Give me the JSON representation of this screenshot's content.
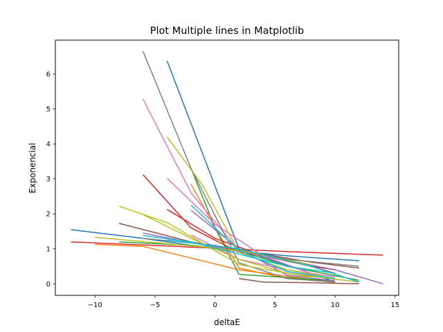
{
  "chart_data": {
    "type": "line",
    "title": "Plot Multiple lines in Matplotlib",
    "xlabel": "deltaE",
    "ylabel": "Exponencial",
    "xlim": [
      -13.3,
      15.3
    ],
    "ylim": [
      -0.33,
      6.97
    ],
    "xticks": [
      -10,
      -5,
      0,
      5,
      10,
      15
    ],
    "xtick_labels": [
      "−10",
      "−5",
      "0",
      "5",
      "10",
      "15"
    ],
    "yticks": [
      0,
      1,
      2,
      3,
      4,
      5,
      6
    ],
    "ytick_labels": [
      "0",
      "1",
      "2",
      "3",
      "4",
      "5",
      "6"
    ],
    "grid": false,
    "legend": "none",
    "series": [
      {
        "color": "#1f77b4",
        "x": [
          -4,
          2,
          8,
          10
        ],
        "y": [
          6.38,
          1.0,
          0.3,
          0.05
        ]
      },
      {
        "color": "#1f77b4",
        "x": [
          -12,
          -6,
          0,
          6,
          12
        ],
        "y": [
          1.55,
          1.3,
          1.0,
          0.8,
          0.66
        ]
      },
      {
        "color": "#ff7f0e",
        "x": [
          -10,
          -6,
          2,
          10
        ],
        "y": [
          1.13,
          1.07,
          0.4,
          0.03
        ]
      },
      {
        "color": "#ff7f0e",
        "x": [
          -2,
          0,
          2,
          6,
          10
        ],
        "y": [
          2.85,
          1.6,
          0.45,
          0.15,
          0.05
        ]
      },
      {
        "color": "#2ca02c",
        "x": [
          -2,
          0,
          2,
          6,
          10
        ],
        "y": [
          3.3,
          1.6,
          0.27,
          0.18,
          0.08
        ]
      },
      {
        "color": "#2ca02c",
        "x": [
          -8,
          -2,
          2,
          6,
          12
        ],
        "y": [
          1.2,
          1.1,
          0.95,
          0.5,
          0.1
        ]
      },
      {
        "color": "#d62728",
        "x": [
          -12,
          -2,
          6,
          14
        ],
        "y": [
          1.2,
          1.05,
          0.92,
          0.82
        ]
      },
      {
        "color": "#d62728",
        "x": [
          -6,
          -2,
          2,
          6,
          10
        ],
        "y": [
          3.12,
          1.6,
          0.9,
          0.7,
          0.3
        ]
      },
      {
        "color": "#d62728",
        "x": [
          -4,
          0,
          4,
          8,
          10
        ],
        "y": [
          2.13,
          1.3,
          0.8,
          0.5,
          0.4
        ]
      },
      {
        "color": "#9467bd",
        "x": [
          -6,
          0,
          4,
          10,
          14
        ],
        "y": [
          1.45,
          1.05,
          0.8,
          0.4,
          0.0
        ]
      },
      {
        "color": "#9467bd",
        "x": [
          -2,
          2,
          6,
          10
        ],
        "y": [
          2.1,
          1.0,
          0.25,
          0.08
        ]
      },
      {
        "color": "#8c564b",
        "x": [
          -8,
          -2,
          4,
          8,
          12
        ],
        "y": [
          1.73,
          1.2,
          0.85,
          0.62,
          0.45
        ]
      },
      {
        "color": "#8c564b",
        "x": [
          2,
          4,
          8,
          12
        ],
        "y": [
          0.15,
          0.05,
          0.03,
          0.0
        ]
      },
      {
        "color": "#e377c2",
        "x": [
          -6,
          -2,
          2,
          6,
          10
        ],
        "y": [
          5.28,
          2.6,
          0.95,
          0.35,
          0.12
        ]
      },
      {
        "color": "#e377c2",
        "x": [
          -4,
          0,
          4,
          8
        ],
        "y": [
          3.02,
          1.7,
          0.8,
          0.3
        ]
      },
      {
        "color": "#e377c2",
        "x": [
          -2,
          2,
          6,
          10
        ],
        "y": [
          1.4,
          0.7,
          0.4,
          0.2
        ]
      },
      {
        "color": "#7f7f7f",
        "x": [
          -6,
          -2,
          2,
          6,
          10
        ],
        "y": [
          6.65,
          3.3,
          0.6,
          0.15,
          0.05
        ]
      },
      {
        "color": "#7f7f7f",
        "x": [
          -6,
          0,
          6,
          12
        ],
        "y": [
          1.3,
          1.1,
          0.7,
          0.5
        ]
      },
      {
        "color": "#bcbd22",
        "x": [
          -8,
          -4,
          2,
          8
        ],
        "y": [
          2.22,
          1.75,
          0.55,
          0.18
        ]
      },
      {
        "color": "#bcbd22",
        "x": [
          -4,
          -1,
          2,
          6,
          10
        ],
        "y": [
          4.2,
          2.8,
          0.9,
          0.4,
          0.15
        ]
      },
      {
        "color": "#bcbd22",
        "x": [
          -6,
          -2,
          2,
          6,
          12
        ],
        "y": [
          1.98,
          1.3,
          0.7,
          0.3,
          0.05
        ]
      },
      {
        "color": "#bcbd22",
        "x": [
          -10,
          -4,
          2,
          8
        ],
        "y": [
          1.33,
          1.15,
          0.95,
          0.55
        ]
      },
      {
        "color": "#17becf",
        "x": [
          -2,
          2,
          6,
          10
        ],
        "y": [
          2.25,
          0.95,
          0.35,
          0.15
        ]
      },
      {
        "color": "#17becf",
        "x": [
          -6,
          -2,
          2,
          6,
          10
        ],
        "y": [
          1.38,
          1.2,
          0.85,
          0.5,
          0.3
        ]
      },
      {
        "color": "#17becf",
        "x": [
          -4,
          2,
          8,
          12
        ],
        "y": [
          1.25,
          1.0,
          0.5,
          0.05
        ]
      }
    ]
  }
}
